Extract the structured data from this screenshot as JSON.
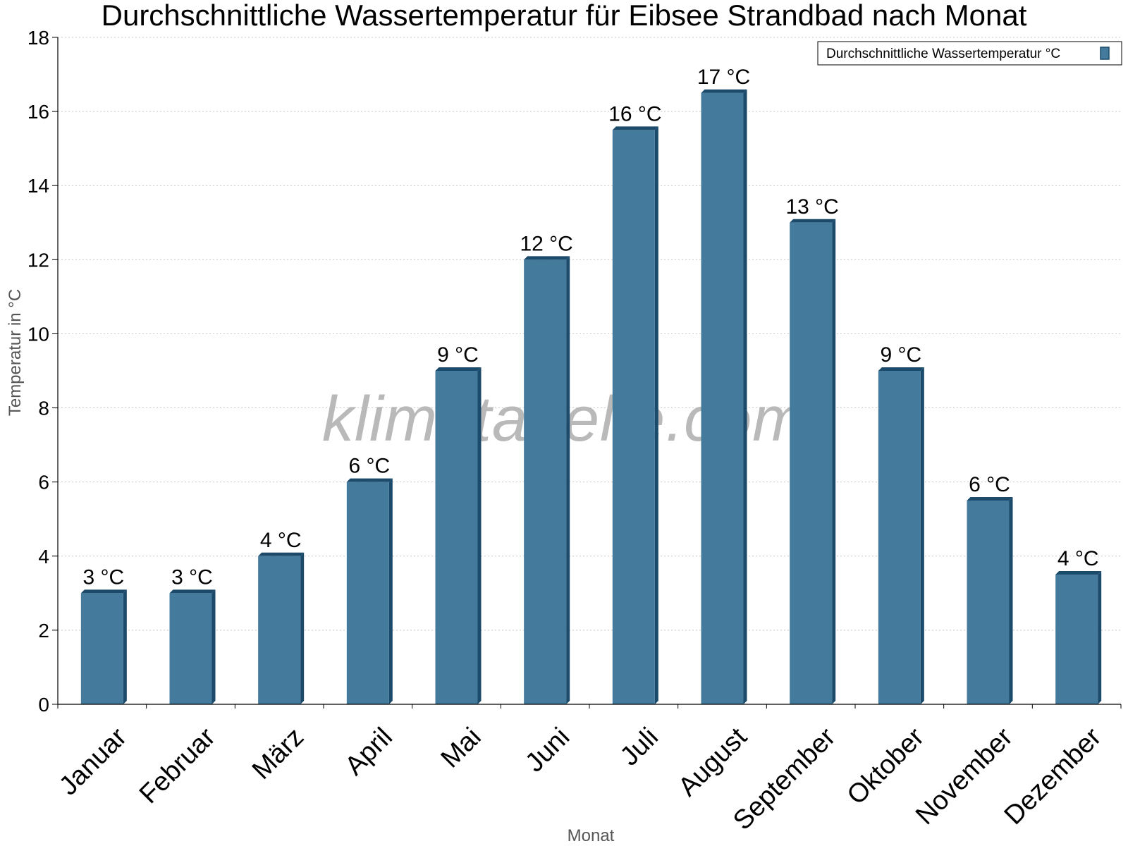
{
  "chart_data": {
    "type": "bar",
    "title": "Durchschnittliche Wassertemperatur für Eibsee Strandbad nach Monat",
    "xlabel": "Monat",
    "ylabel": "Temperatur in °C",
    "ylim": [
      0,
      18
    ],
    "yticks": [
      "0",
      "2",
      "4",
      "6",
      "8",
      "10",
      "12",
      "14",
      "16",
      "18"
    ],
    "grid": true,
    "legend_position": "top-right",
    "categories": [
      "Januar",
      "Februar",
      "März",
      "April",
      "Mai",
      "Juni",
      "Juli",
      "August",
      "September",
      "Oktober",
      "November",
      "Dezember"
    ],
    "series": [
      {
        "name": "Durchschnittliche Wassertemperatur °C",
        "values": [
          3,
          3,
          4,
          6,
          9,
          12,
          15.5,
          16.5,
          13,
          9,
          5.5,
          3.5
        ],
        "labels": [
          "3 °C",
          "3 °C",
          "4 °C",
          "6 °C",
          "9 °C",
          "12 °C",
          "16 °C",
          "17 °C",
          "13 °C",
          "9 °C",
          "6 °C",
          "4 °C"
        ],
        "color": "#447a9c",
        "side_color": "#1b4a6b"
      }
    ]
  },
  "watermark": "klimatabelle.com"
}
